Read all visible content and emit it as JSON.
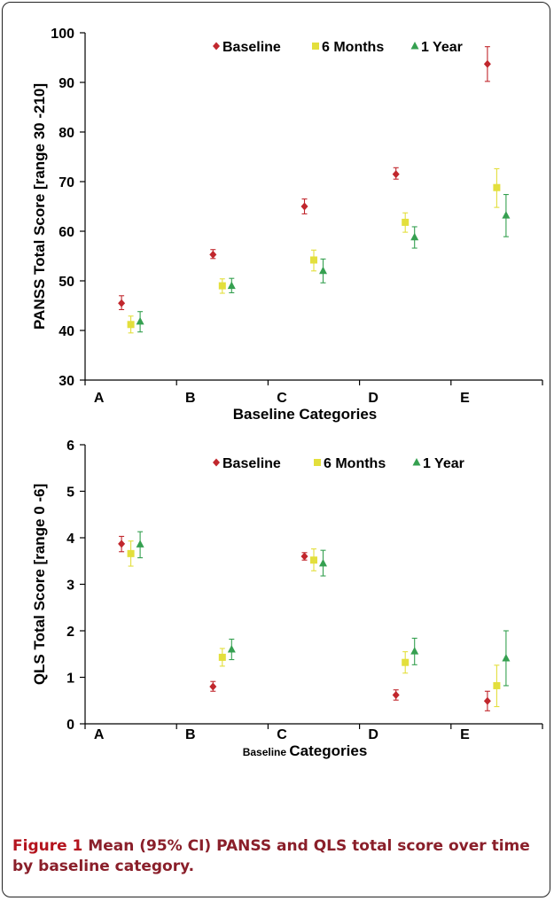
{
  "chart_data": [
    {
      "type": "scatter",
      "categories": [
        "A",
        "B",
        "C",
        "D",
        "E"
      ],
      "xlabel": "Baseline Categories",
      "ylabel": "PANSS Total Score [range 30 -210]",
      "ylim": [
        30,
        100
      ],
      "yticks": [
        30,
        40,
        50,
        60,
        70,
        80,
        90,
        100
      ],
      "legend_position": "top-center",
      "grid": false,
      "series": [
        {
          "name": "Baseline",
          "color": "#c1272d",
          "marker": "diamond",
          "values": [
            45.5,
            55.3,
            65.0,
            71.5,
            93.7
          ],
          "ci_low": [
            44.2,
            54.5,
            63.5,
            70.5,
            90.2
          ],
          "ci_high": [
            47.0,
            56.3,
            66.5,
            72.8,
            97.2
          ]
        },
        {
          "name": "6 Months",
          "color": "#e3df3c",
          "marker": "square",
          "values": [
            41.2,
            49.0,
            54.2,
            61.8,
            68.8
          ],
          "ci_low": [
            39.5,
            47.5,
            52.0,
            59.8,
            64.8
          ],
          "ci_high": [
            42.9,
            50.4,
            56.2,
            63.7,
            72.6
          ]
        },
        {
          "name": "1 Year",
          "color": "#35a050",
          "marker": "triangle",
          "values": [
            41.8,
            49.0,
            52.0,
            58.8,
            63.2
          ],
          "ci_low": [
            39.7,
            47.6,
            49.6,
            56.6,
            58.9
          ],
          "ci_high": [
            43.8,
            50.5,
            54.4,
            60.9,
            67.4
          ]
        }
      ]
    },
    {
      "type": "scatter",
      "categories": [
        "A",
        "B",
        "C",
        "D",
        "E"
      ],
      "xlabel_small": "Baseline",
      "xlabel": "Categories",
      "ylabel": "QLS Total Score [range 0 -6]",
      "ylim": [
        0,
        6
      ],
      "yticks": [
        0,
        1,
        2,
        3,
        4,
        5,
        6
      ],
      "legend_position": "top-center",
      "grid": false,
      "series": [
        {
          "name": "Baseline",
          "color": "#c1272d",
          "marker": "diamond",
          "values": [
            3.87,
            0.8,
            3.6,
            0.62,
            0.49
          ],
          "ci_low": [
            3.7,
            0.7,
            3.52,
            0.51,
            0.28
          ],
          "ci_high": [
            4.03,
            0.91,
            3.68,
            0.73,
            0.7
          ]
        },
        {
          "name": "6 Months",
          "color": "#e3df3c",
          "marker": "square",
          "values": [
            3.66,
            1.43,
            3.52,
            1.32,
            0.82
          ],
          "ci_low": [
            3.39,
            1.24,
            3.29,
            1.09,
            0.37
          ],
          "ci_high": [
            3.93,
            1.62,
            3.76,
            1.55,
            1.26
          ]
        },
        {
          "name": "1 Year",
          "color": "#35a050",
          "marker": "triangle",
          "values": [
            3.86,
            1.6,
            3.45,
            1.56,
            1.41
          ],
          "ci_low": [
            3.57,
            1.38,
            3.18,
            1.27,
            0.82
          ],
          "ci_high": [
            4.13,
            1.82,
            3.73,
            1.84,
            2.0
          ]
        }
      ]
    }
  ],
  "caption": {
    "label": "Figure 1",
    "text": "Mean (95% CI) PANSS and QLS total score over time by baseline category."
  }
}
